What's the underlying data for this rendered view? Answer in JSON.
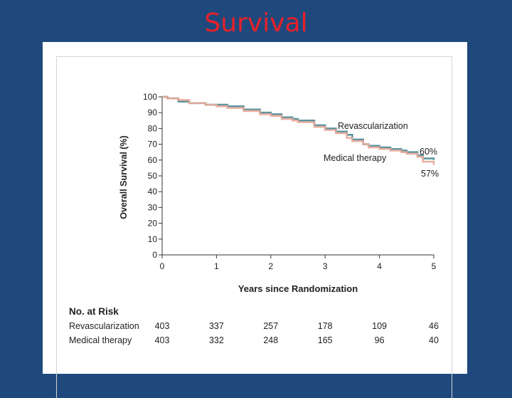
{
  "slide": {
    "title": "Survival"
  },
  "colors": {
    "background": "#1f497d",
    "title": "#e8202a",
    "revascularization": "#4a8a96",
    "medical_therapy": "#e8a898"
  },
  "chart_data": {
    "type": "line",
    "title": "",
    "xlabel": "Years since Randomization",
    "ylabel": "Overall Survival (%)",
    "xlim": [
      0,
      5
    ],
    "ylim": [
      0,
      100
    ],
    "xticks": [
      0,
      1,
      2,
      3,
      4,
      5
    ],
    "yticks": [
      0,
      10,
      20,
      30,
      40,
      50,
      60,
      70,
      80,
      90,
      100
    ],
    "grid": false,
    "series": [
      {
        "name": "Revascularization",
        "color": "#4a8a96",
        "end_label": "60%",
        "x": [
          0,
          0.1,
          0.3,
          0.5,
          0.8,
          1.0,
          1.2,
          1.5,
          1.8,
          2.0,
          2.2,
          2.4,
          2.5,
          2.8,
          3.0,
          3.2,
          3.4,
          3.5,
          3.7,
          3.8,
          4.0,
          4.2,
          4.4,
          4.5,
          4.6,
          4.7,
          4.8,
          5.0
        ],
        "y": [
          100,
          99,
          97,
          96,
          95,
          95,
          94,
          92,
          90,
          89,
          87,
          86,
          85,
          82,
          80,
          78,
          76,
          73,
          70,
          69,
          68,
          67,
          66,
          65,
          65,
          63,
          61,
          60
        ]
      },
      {
        "name": "Medical therapy",
        "color": "#e8a898",
        "end_label": "57%",
        "x": [
          0,
          0.1,
          0.3,
          0.5,
          0.8,
          1.0,
          1.2,
          1.5,
          1.8,
          2.0,
          2.2,
          2.4,
          2.5,
          2.8,
          3.0,
          3.2,
          3.4,
          3.5,
          3.7,
          3.8,
          4.0,
          4.2,
          4.4,
          4.5,
          4.6,
          4.7,
          4.8,
          5.0
        ],
        "y": [
          100,
          99,
          98,
          96,
          95,
          94,
          93,
          91,
          89,
          88,
          86,
          85,
          84,
          81,
          79,
          77,
          74,
          72,
          70,
          68,
          67,
          66,
          65,
          64,
          64,
          62,
          59,
          57
        ]
      }
    ],
    "risk_table": {
      "title": "No. at Risk",
      "rows": [
        {
          "label": "Revascularization",
          "values": [
            "403",
            "337",
            "257",
            "178",
            "109",
            "46"
          ]
        },
        {
          "label": "Medical therapy",
          "values": [
            "403",
            "332",
            "248",
            "165",
            "96",
            "40"
          ]
        }
      ]
    }
  }
}
